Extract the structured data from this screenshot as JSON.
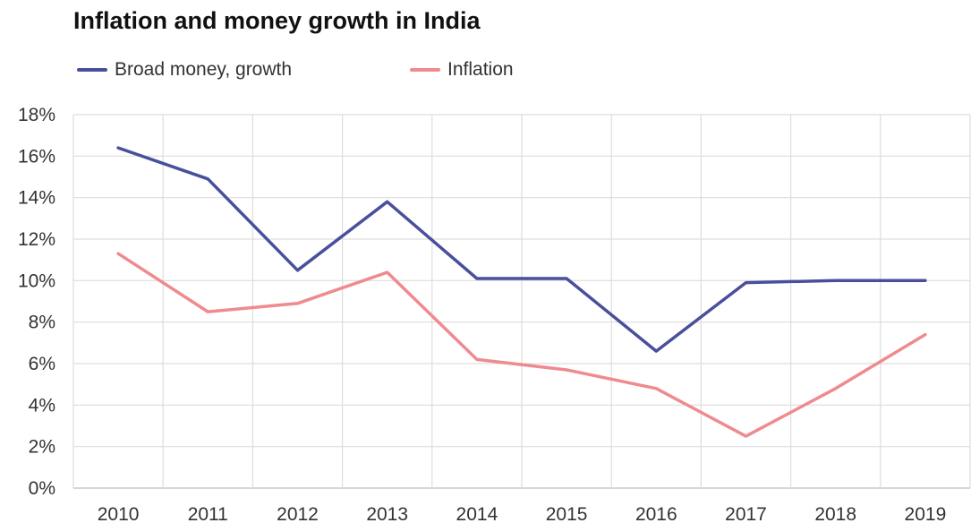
{
  "chart_data": {
    "type": "line",
    "title": "Inflation and money growth in India",
    "xlabel": "",
    "ylabel": "",
    "categories": [
      "2010",
      "2011",
      "2012",
      "2013",
      "2014",
      "2015",
      "2016",
      "2017",
      "2018",
      "2019"
    ],
    "ylim": [
      0,
      18
    ],
    "yticks": [
      "0%",
      "2%",
      "4%",
      "6%",
      "8%",
      "10%",
      "12%",
      "14%",
      "16%",
      "18%"
    ],
    "grid": true,
    "legend_position": "top-left",
    "series": [
      {
        "name": "Broad money, growth",
        "color": "#4a4f9c",
        "values": [
          16.4,
          14.9,
          10.5,
          13.8,
          10.1,
          10.1,
          6.6,
          9.9,
          10.0,
          10.0
        ]
      },
      {
        "name": "Inflation",
        "color": "#ef8a8f",
        "values": [
          11.3,
          8.5,
          8.9,
          10.4,
          6.2,
          5.7,
          4.8,
          2.5,
          4.8,
          7.4
        ]
      }
    ]
  }
}
